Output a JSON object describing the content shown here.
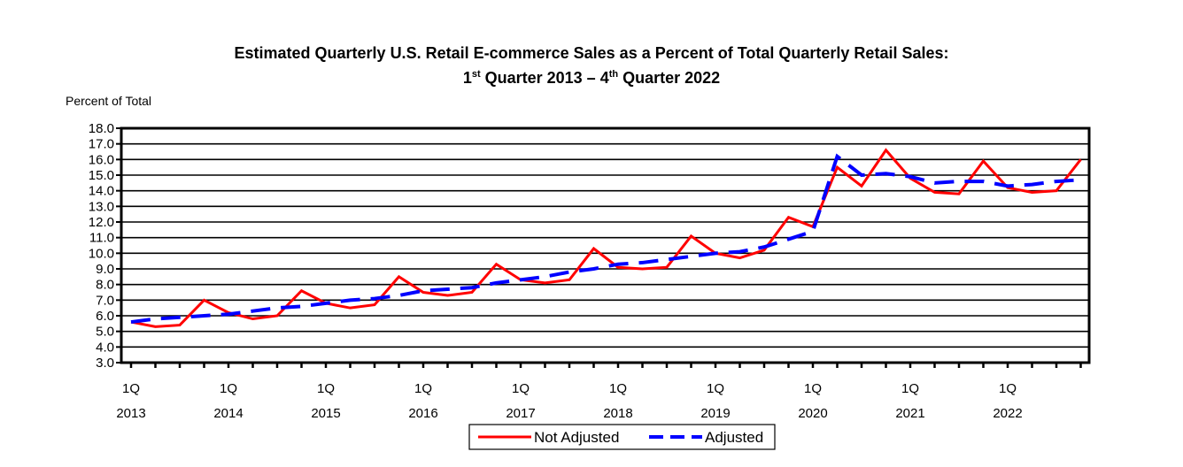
{
  "chart_data": {
    "type": "line",
    "title": "Estimated Quarterly U.S. Retail E-commerce Sales as a Percent of Total Quarterly Retail Sales:",
    "subtitle": {
      "start_num": "1",
      "start_sup": "st",
      "mid": " Quarter 2013 – ",
      "end_num": "4",
      "end_sup": "th",
      "end": " Quarter 2022"
    },
    "ylabel": "Percent of Total",
    "xlabel": "",
    "ylim": [
      3.0,
      18.0
    ],
    "yticks": [
      "3.0",
      "4.0",
      "5.0",
      "6.0",
      "7.0",
      "8.0",
      "9.0",
      "10.0",
      "11.0",
      "12.0",
      "13.0",
      "14.0",
      "15.0",
      "16.0",
      "17.0",
      "18.0"
    ],
    "xtick_labels": [
      [
        "1Q",
        "2013"
      ],
      [
        "1Q",
        "2014"
      ],
      [
        "1Q",
        "2015"
      ],
      [
        "1Q",
        "2016"
      ],
      [
        "1Q",
        "2017"
      ],
      [
        "1Q",
        "2018"
      ],
      [
        "1Q",
        "2019"
      ],
      [
        "1Q",
        "2020"
      ],
      [
        "1Q",
        "2021"
      ],
      [
        "1Q",
        "2022"
      ]
    ],
    "grid": true,
    "legend": "bottom",
    "series": [
      {
        "name": "Not Adjusted",
        "color": "#ff0000",
        "style": "solid",
        "values": [
          5.6,
          5.3,
          5.4,
          7.0,
          6.2,
          5.8,
          6.0,
          7.6,
          6.8,
          6.5,
          6.7,
          8.5,
          7.5,
          7.3,
          7.5,
          9.3,
          8.3,
          8.1,
          8.3,
          10.3,
          9.1,
          9.0,
          9.1,
          11.1,
          10.0,
          9.7,
          10.2,
          12.3,
          11.7,
          15.5,
          14.3,
          16.6,
          14.8,
          13.9,
          13.8,
          15.9,
          14.2,
          13.9,
          14.0,
          16.0
        ]
      },
      {
        "name": "Adjusted",
        "color": "#0000ff",
        "style": "dashed",
        "values": [
          5.6,
          5.8,
          5.9,
          6.0,
          6.1,
          6.3,
          6.5,
          6.6,
          6.8,
          7.0,
          7.1,
          7.3,
          7.6,
          7.7,
          7.8,
          8.1,
          8.3,
          8.5,
          8.8,
          9.0,
          9.3,
          9.4,
          9.6,
          9.8,
          10.0,
          10.1,
          10.4,
          10.9,
          11.4,
          16.2,
          15.0,
          15.1,
          14.9,
          14.5,
          14.6,
          14.6,
          14.3,
          14.4,
          14.6,
          14.7
        ]
      }
    ]
  }
}
